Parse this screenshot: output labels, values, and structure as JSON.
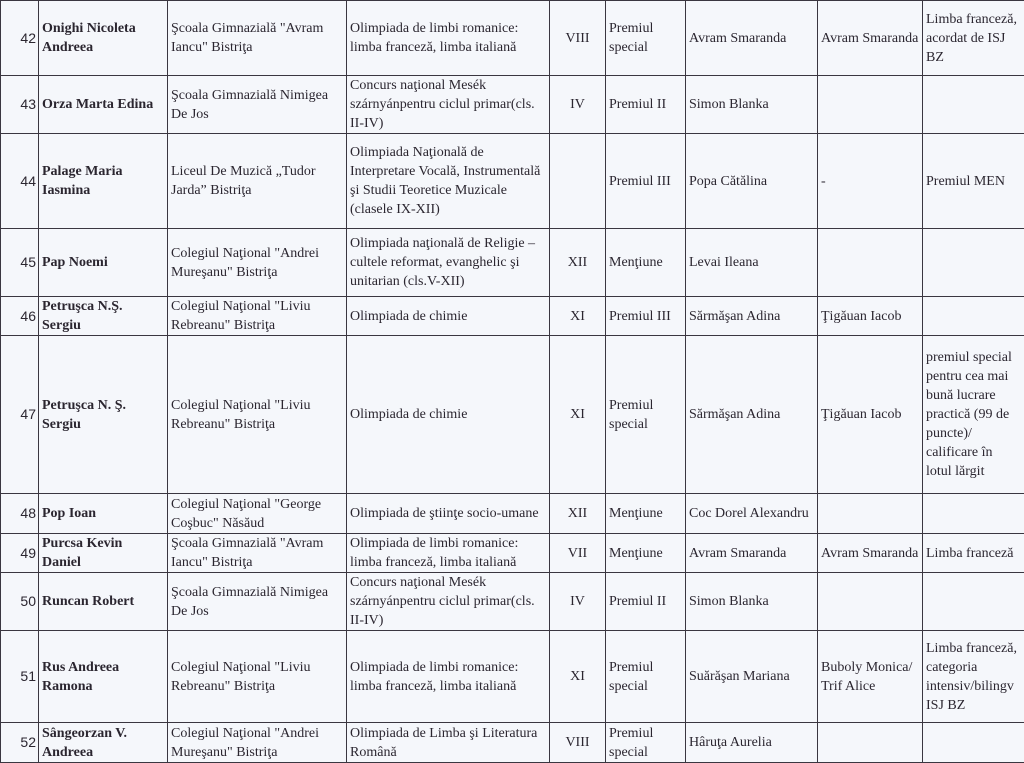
{
  "rows": [
    {
      "nr": "42",
      "name": "Onighi Nicoleta Andreea",
      "school": "Şcoala Gimnazială \"Avram Iancu\" Bistriţa",
      "competition": "Olimpiada de limbi romanice: limba franceză, limba italiană",
      "class": "VIII",
      "prize": "Premiul special",
      "teacher": "Avram Smaranda",
      "teacher2": "Avram Smaranda",
      "notes": "Limba franceză, acordat de ISJ BZ"
    },
    {
      "nr": "43",
      "name": "Orza Marta Edina",
      "school": "Şcoala Gimnazială Nimigea De Jos",
      "competition": "Concurs naţional Mesék szárnyánpentru ciclul primar(cls. II-IV)",
      "class": "IV",
      "prize": "Premiul II",
      "teacher": "Simon Blanka",
      "teacher2": "",
      "notes": ""
    },
    {
      "nr": "44",
      "name": "Palage Maria Iasmina",
      "school": "Liceul De Muzică „Tudor Jarda” Bistriţa",
      "competition": "Olimpiada Naţională de Interpretare Vocală, Instrumentală şi Studii Teoretice Muzicale (clasele IX-XII)",
      "class": "",
      "prize": "Premiul III",
      "teacher": "Popa Cătălina",
      "teacher2": "-",
      "notes": "Premiul MEN"
    },
    {
      "nr": "45",
      "name": "Pap Noemi",
      "school": "Colegiul Naţional \"Andrei Mureşanu\" Bistriţa",
      "competition": "Olimpiada naţională de Religie – cultele reformat, evanghelic şi unitarian (cls.V-XII)",
      "class": "XII",
      "prize": "Menţiune",
      "teacher": "Levai Ileana",
      "teacher2": "",
      "notes": ""
    },
    {
      "nr": "46",
      "name": "Petruşca N.Ş. Sergiu",
      "school": "Colegiul Naţional \"Liviu Rebreanu\" Bistriţa",
      "competition": "Olimpiada de chimie",
      "class": "XI",
      "prize": "Premiul III",
      "teacher": "Sărmăşan Adina",
      "teacher2": "Ţigăuan Iacob",
      "notes": ""
    },
    {
      "nr": "47",
      "name": "Petruşca N. Ş. Sergiu",
      "school": "Colegiul Naţional \"Liviu Rebreanu\" Bistriţa",
      "competition": "Olimpiada de chimie",
      "class": "XI",
      "prize": "Premiul special",
      "teacher": "Sărmăşan Adina",
      "teacher2": "Ţigăuan Iacob",
      "notes": "premiul special pentru cea mai bună lucrare practică (99 de puncte)/ calificare în lotul lărgit"
    },
    {
      "nr": "48",
      "name": "Pop Ioan",
      "school": "Colegiul Naţional \"George Coşbuc\" Năsăud",
      "competition": "Olimpiada de ştiinţe socio-umane",
      "class": "XII",
      "prize": "Menţiune",
      "teacher": "Coc Dorel Alexandru",
      "teacher2": "",
      "notes": ""
    },
    {
      "nr": "49",
      "name": "Purcsa Kevin Daniel",
      "school": "Şcoala Gimnazială \"Avram Iancu\" Bistriţa",
      "competition": "Olimpiada de limbi romanice: limba franceză, limba italiană",
      "class": "VII",
      "prize": "Menţiune",
      "teacher": "Avram Smaranda",
      "teacher2": "Avram Smaranda",
      "notes": "Limba franceză"
    },
    {
      "nr": "50",
      "name": "Runcan Robert",
      "school": "Şcoala Gimnazială Nimigea De Jos",
      "competition": "Concurs naţional Mesék szárnyánpentru ciclul primar(cls. II-IV)",
      "class": "IV",
      "prize": "Premiul II",
      "teacher": "Simon Blanka",
      "teacher2": "",
      "notes": ""
    },
    {
      "nr": "51",
      "name": "Rus Andreea Ramona",
      "school": "Colegiul Naţional \"Liviu Rebreanu\" Bistriţa",
      "competition": "Olimpiada de limbi romanice: limba franceză, limba italiană",
      "class": "XI",
      "prize": "Premiul special",
      "teacher": "Suărăşan Mariana",
      "teacher2": "Buboly Monica/ Trif Alice",
      "notes": "Limba franceză, categoria intensiv/bilingv ISJ BZ"
    },
    {
      "nr": "52",
      "name": "Sângeorzan V. Andreea",
      "school": "Colegiul Naţional \"Andrei Mureşanu\" Bistriţa",
      "competition": "Olimpiada de Limba şi Literatura Română",
      "class": "VIII",
      "prize": "Premiul special",
      "teacher": "Hâruţa Aurelia",
      "teacher2": "",
      "notes": ""
    }
  ]
}
